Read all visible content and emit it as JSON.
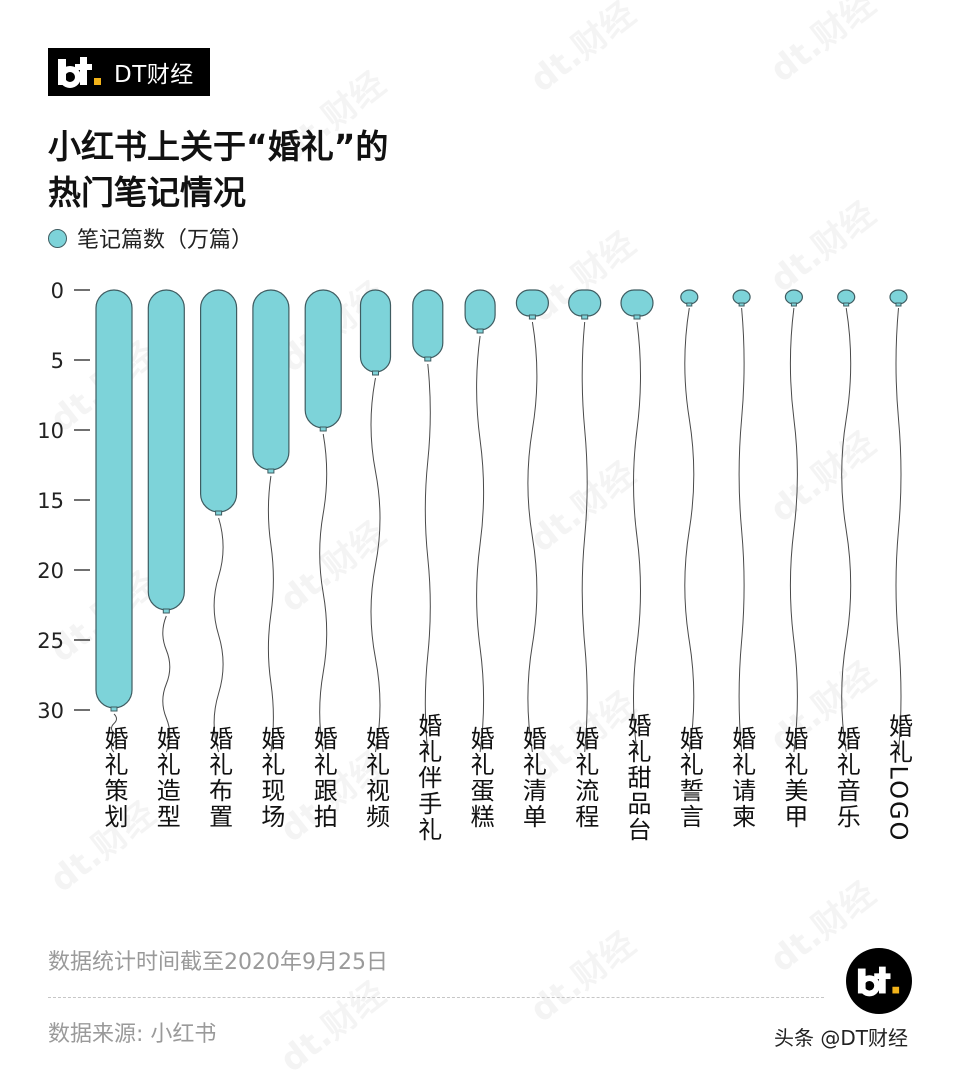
{
  "brand": {
    "name": "DT财经",
    "logo_icon": "dt-logo-icon"
  },
  "title": {
    "line1": "小红书上关于“婚礼”的",
    "line2": "热门笔记情况"
  },
  "legend": {
    "label": "笔记篇数（万篇）"
  },
  "colors": {
    "balloon": "#7dd3d9",
    "outline": "#3f5c61",
    "string": "#4a4a4a",
    "tick": "#333333"
  },
  "chart_data": {
    "type": "bar",
    "title": "小红书上关于“婚礼”的热门笔记情况",
    "ylabel": "",
    "ylim": [
      0,
      32
    ],
    "y_inverted": true,
    "yticks": [
      0,
      5,
      10,
      15,
      20,
      25,
      30
    ],
    "categories": [
      "婚礼策划",
      "婚礼造型",
      "婚礼布置",
      "婚礼现场",
      "婚礼跟拍",
      "婚礼视频",
      "婚礼伴手礼",
      "婚礼蛋糕",
      "婚礼清单",
      "婚礼流程",
      "婚礼甜品台",
      "婚礼誓言",
      "婚礼请柬",
      "婚礼美甲",
      "婚礼音乐",
      "婚礼LOGO"
    ],
    "series": [
      {
        "name": "笔记篇数（万篇）",
        "values": [
          30,
          23,
          16,
          13,
          10,
          6,
          5,
          3,
          2,
          2,
          2,
          1,
          1,
          1,
          1,
          1
        ]
      }
    ]
  },
  "footer": {
    "note": "数据统计时间截至2020年9月25日",
    "source": "数据来源: 小红书",
    "watermark": "头条 @DT财经"
  },
  "watermark_text": "dt.财经"
}
